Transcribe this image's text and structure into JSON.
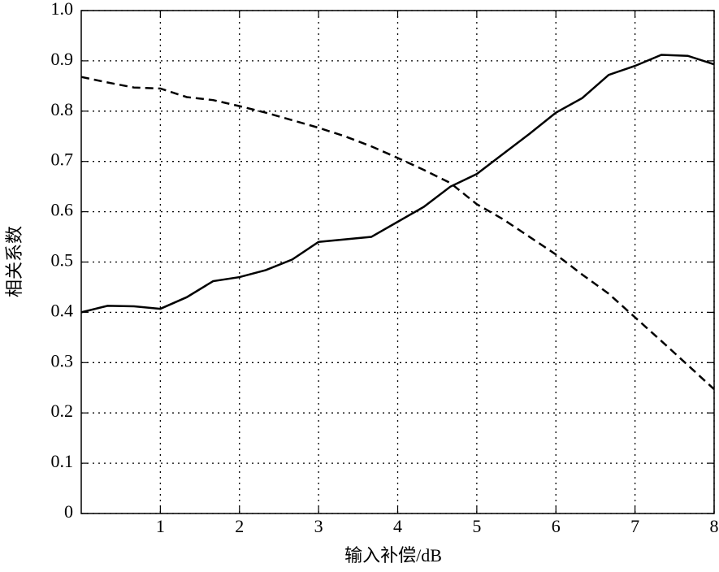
{
  "chart_data": {
    "type": "line",
    "x_label": "输入补偿/dB",
    "y_label": "相关系数",
    "x": [
      0,
      0.333,
      0.667,
      1,
      1.333,
      1.667,
      2,
      2.333,
      2.667,
      3,
      3.333,
      3.667,
      4,
      4.333,
      4.667,
      5,
      5.333,
      5.667,
      6,
      6.333,
      6.667,
      7,
      7.333,
      7.667,
      8
    ],
    "series": [
      {
        "color": "#000000",
        "linestyle": "solid",
        "values": [
          0.4,
          0.413,
          0.412,
          0.407,
          0.43,
          0.462,
          0.47,
          0.484,
          0.505,
          0.54,
          0.545,
          0.55,
          0.58,
          0.61,
          0.65,
          0.675,
          0.715,
          0.755,
          0.797,
          0.826,
          0.872,
          0.89,
          0.912,
          0.91,
          0.893
        ]
      },
      {
        "color": "#000000",
        "linestyle": "dashed",
        "values": [
          0.868,
          0.857,
          0.847,
          0.845,
          0.828,
          0.822,
          0.81,
          0.797,
          0.782,
          0.767,
          0.75,
          0.73,
          0.707,
          0.683,
          0.657,
          0.615,
          0.585,
          0.55,
          0.515,
          0.475,
          0.437,
          0.39,
          0.343,
          0.295,
          0.247
        ]
      }
    ],
    "xlim": [
      0,
      8
    ],
    "xticks": [
      1,
      2,
      3,
      4,
      5,
      6,
      7,
      8
    ],
    "ylim": [
      0,
      1
    ],
    "yticks": [
      0,
      0.1,
      0.2,
      0.3,
      0.4,
      0.5,
      0.6,
      0.7,
      0.8,
      0.9,
      {
        "value": 1,
        "label": "1.0"
      }
    ],
    "grid": true
  }
}
